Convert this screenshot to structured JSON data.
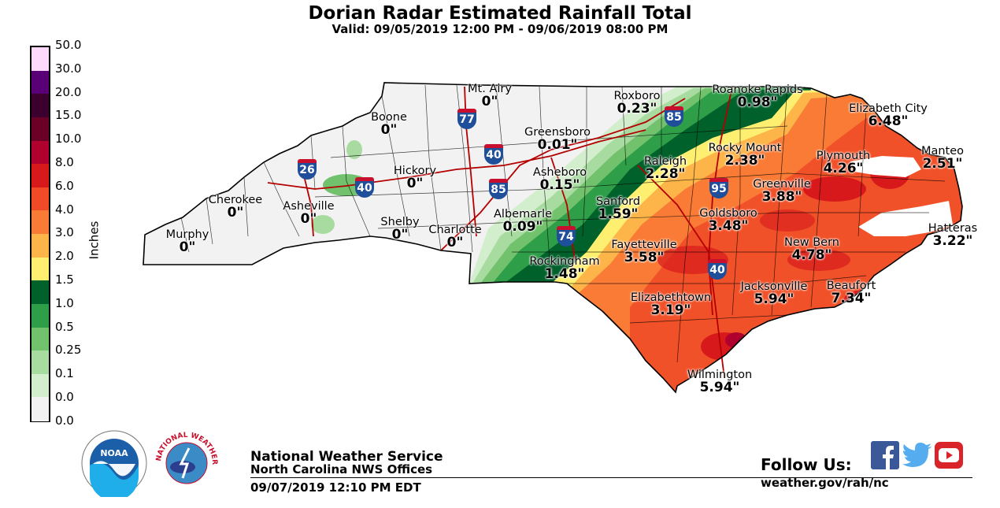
{
  "header": {
    "title": "Dorian Radar Estimated Rainfall Total",
    "valid": "Valid: 09/05/2019 12:00 PM - 09/06/2019 08:00 PM"
  },
  "legend": {
    "units": "Inches",
    "labels": [
      "50.0",
      "30.0",
      "20.0",
      "15.0",
      "10.0",
      "8.0",
      "6.0",
      "4.0",
      "3.0",
      "2.0",
      "1.5",
      "1.0",
      "0.5",
      "0.25",
      "0.1",
      "0.0",
      "0.0"
    ],
    "colors": [
      "#ffd9fb",
      "#5a0076",
      "#3c002f",
      "#6b0026",
      "#b0002d",
      "#d7191c",
      "#f04a26",
      "#f97b35",
      "#fdb54a",
      "#ffef70",
      "#00612a",
      "#2e9e48",
      "#72c26d",
      "#a8dba0",
      "#d3eecd",
      "#f2f2f2"
    ]
  },
  "map": {
    "cities": [
      {
        "name": "Mt. Airy",
        "value": "0\""
      },
      {
        "name": "Roxboro",
        "value": "0.23\""
      },
      {
        "name": "Roanoke Rapids",
        "value": "0.98\""
      },
      {
        "name": "Elizabeth City",
        "value": "6.48\""
      },
      {
        "name": "Boone",
        "value": "0\""
      },
      {
        "name": "Greensboro",
        "value": "0.01\""
      },
      {
        "name": "Rocky Mount",
        "value": "2.38\""
      },
      {
        "name": "Plymouth",
        "value": "4.26\""
      },
      {
        "name": "Manteo",
        "value": "2.51\""
      },
      {
        "name": "Hickory",
        "value": "0\""
      },
      {
        "name": "Asheboro",
        "value": "0.15\""
      },
      {
        "name": "Raleigh",
        "value": "2.28\""
      },
      {
        "name": "Greenville",
        "value": "3.88\""
      },
      {
        "name": "Cherokee",
        "value": "0\""
      },
      {
        "name": "Asheville",
        "value": "0\""
      },
      {
        "name": "Sanford",
        "value": "1.59\""
      },
      {
        "name": "Goldsboro",
        "value": "3.48\""
      },
      {
        "name": "Albemarle",
        "value": "0.09\""
      },
      {
        "name": "Shelby",
        "value": "0\""
      },
      {
        "name": "Charlotte",
        "value": "0\""
      },
      {
        "name": "Hatteras",
        "value": "3.22\""
      },
      {
        "name": "Murphy",
        "value": "0\""
      },
      {
        "name": "Fayetteville",
        "value": "3.58\""
      },
      {
        "name": "New Bern",
        "value": "4.78\""
      },
      {
        "name": "Rockingham",
        "value": "1.48\""
      },
      {
        "name": "Jacksonville",
        "value": "5.94\""
      },
      {
        "name": "Beaufort",
        "value": "7.34\""
      },
      {
        "name": "Elizabethtown",
        "value": "3.19\""
      },
      {
        "name": "Wilmington",
        "value": "5.94\""
      }
    ],
    "interstates": [
      "77",
      "85",
      "40",
      "26",
      "40",
      "85",
      "95",
      "74",
      "40"
    ]
  },
  "footer": {
    "org": "National Weather Service",
    "office": "North Carolina NWS Offices",
    "date": "09/07/2019 12:10 PM EDT",
    "follow": "Follow Us:",
    "site": "weather.gov/rah/nc",
    "noaa_logo": "NOAA",
    "nws_logo": "NATIONAL WEATHER SERVICE"
  }
}
